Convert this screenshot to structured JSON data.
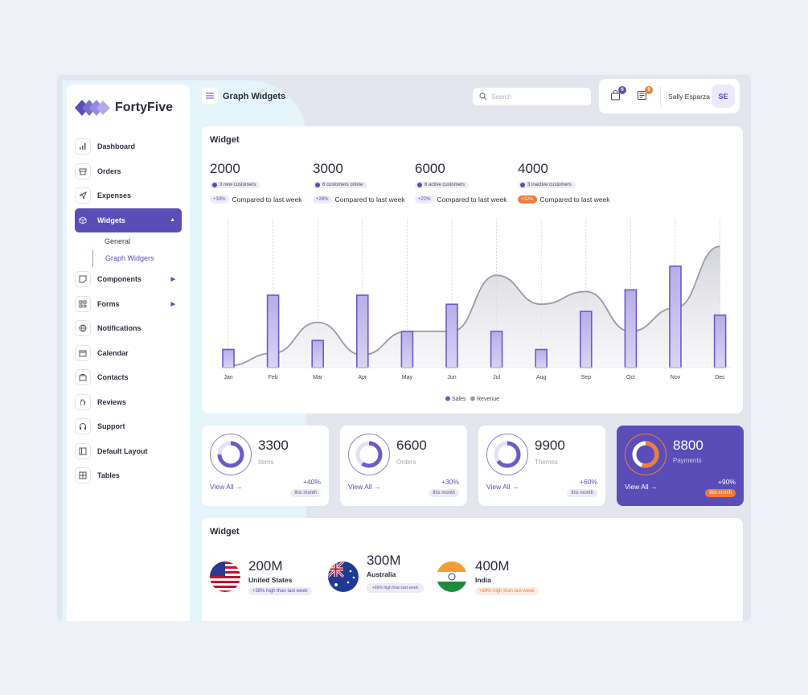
{
  "brand": {
    "name": "FortyFive"
  },
  "header": {
    "title": "Graph Widgets",
    "search_placeholder": "Search",
    "cart_badge": "6",
    "news_badge": "9",
    "user_name": "Sally Esparza",
    "user_initials": "SE"
  },
  "sidebar": {
    "items": [
      {
        "label": "Dashboard",
        "icon": "bar-chart-icon"
      },
      {
        "label": "Orders",
        "icon": "archive-icon"
      },
      {
        "label": "Expenses",
        "icon": "send-icon"
      },
      {
        "label": "Widgets",
        "icon": "box-icon",
        "active": true
      },
      {
        "label": "Components",
        "icon": "sticky-note-icon"
      },
      {
        "label": "Forms",
        "icon": "grid-icon"
      },
      {
        "label": "Notifications",
        "icon": "globe-icon"
      },
      {
        "label": "Calendar",
        "icon": "calendar-icon"
      },
      {
        "label": "Contacts",
        "icon": "folder-icon"
      },
      {
        "label": "Reviews",
        "icon": "hand-icon"
      },
      {
        "label": "Support",
        "icon": "headphones-icon"
      },
      {
        "label": "Default Layout",
        "icon": "layout-icon"
      },
      {
        "label": "Tables",
        "icon": "table-icon"
      }
    ],
    "sub_items": [
      {
        "label": "General"
      },
      {
        "label": "Graph Widgers"
      }
    ]
  },
  "widget1": {
    "title": "Widget",
    "stats": [
      {
        "value": "2000",
        "pill": "3 new customers",
        "pct": "+33%",
        "compare": "Compared to last week"
      },
      {
        "value": "3000",
        "pill": "6 customers online",
        "pct": "+26%",
        "compare": "Compared to last week"
      },
      {
        "value": "6000",
        "pill": "8 active customers",
        "pct": "+22%",
        "compare": "Compared to last week"
      },
      {
        "value": "4000",
        "pill": "3 inactive customers",
        "pct": "+32%",
        "compare": "Compared to last week"
      }
    ]
  },
  "chart_data": {
    "type": "bar",
    "categories": [
      "Jan",
      "Feb",
      "Mar",
      "Apr",
      "May",
      "Jun",
      "Jul",
      "Aug",
      "Sep",
      "Oct",
      "Nov",
      "Dec"
    ],
    "series": [
      {
        "name": "Sales",
        "type": "bar",
        "color": "#6a5cc5",
        "values": [
          10,
          40,
          15,
          40,
          20,
          35,
          20,
          10,
          31,
          43,
          56,
          29
        ]
      },
      {
        "name": "Revenue",
        "type": "area",
        "color": "#999aa5",
        "values": [
          1,
          8,
          25,
          7,
          20,
          20,
          51,
          35,
          42,
          20,
          33,
          67
        ]
      }
    ],
    "ylim": [
      0,
      80
    ],
    "legend": "bottom-center",
    "grid": "vertical-dashed"
  },
  "mini_cards": [
    {
      "value": "3300",
      "label": "Items",
      "view": "View All",
      "pct": "+40%",
      "month": "this month",
      "progress": 0.75
    },
    {
      "value": "6600",
      "label": "Orders",
      "view": "View All",
      "pct": "+30%",
      "month": "this month",
      "progress": 0.6
    },
    {
      "value": "9900",
      "label": "Themes",
      "view": "View All",
      "pct": "+60%",
      "month": "this month",
      "progress": 0.65
    },
    {
      "value": "8800",
      "label": "Payments",
      "view": "View All",
      "pct": "+90%",
      "month": "this month",
      "progress": 0.55
    }
  ],
  "widget2": {
    "title": "Widget",
    "countries": [
      {
        "value": "200M",
        "name": "United States",
        "pct": "+38% high than last week"
      },
      {
        "value": "300M",
        "name": "Australia",
        "pct": "+66% high than last week"
      },
      {
        "value": "400M",
        "name": "India",
        "pct": "+89% high than last week"
      }
    ]
  }
}
